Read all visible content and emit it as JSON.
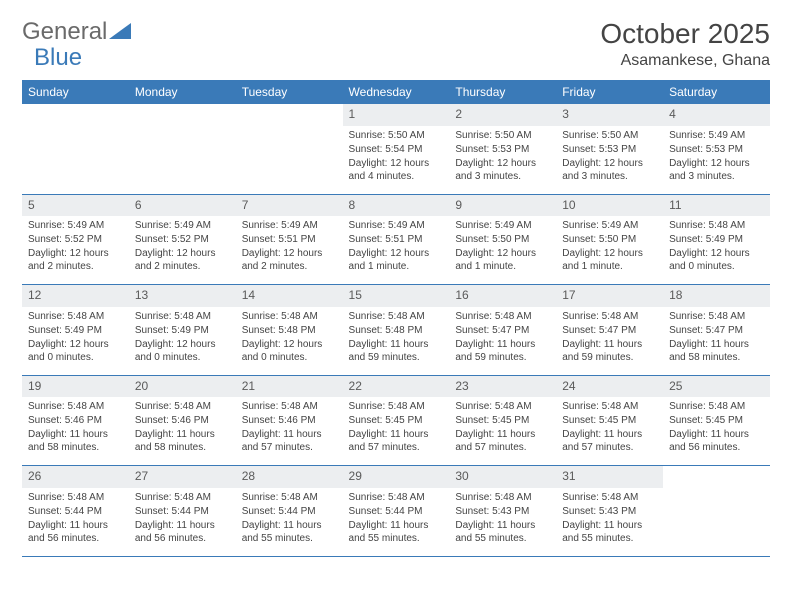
{
  "brand": {
    "part1": "General",
    "part2": "Blue"
  },
  "month_title": "October 2025",
  "location": "Asamankese, Ghana",
  "colors": {
    "header_bg": "#3a7ab8",
    "header_text": "#ffffff",
    "daynum_bg": "#eceef0",
    "daynum_text": "#5a5a5a",
    "row_border": "#3a7ab8",
    "body_text": "#444444",
    "page_bg": "#ffffff"
  },
  "typography": {
    "month_fontsize": 28,
    "location_fontsize": 16,
    "weekday_fontsize": 12,
    "daynum_fontsize": 12,
    "detail_fontsize": 10
  },
  "days_of_week": [
    "Sunday",
    "Monday",
    "Tuesday",
    "Wednesday",
    "Thursday",
    "Friday",
    "Saturday"
  ],
  "weeks": [
    [
      null,
      null,
      null,
      {
        "d": "1",
        "sr": "5:50 AM",
        "ss": "5:54 PM",
        "dl": "12 hours and 4 minutes."
      },
      {
        "d": "2",
        "sr": "5:50 AM",
        "ss": "5:53 PM",
        "dl": "12 hours and 3 minutes."
      },
      {
        "d": "3",
        "sr": "5:50 AM",
        "ss": "5:53 PM",
        "dl": "12 hours and 3 minutes."
      },
      {
        "d": "4",
        "sr": "5:49 AM",
        "ss": "5:53 PM",
        "dl": "12 hours and 3 minutes."
      }
    ],
    [
      {
        "d": "5",
        "sr": "5:49 AM",
        "ss": "5:52 PM",
        "dl": "12 hours and 2 minutes."
      },
      {
        "d": "6",
        "sr": "5:49 AM",
        "ss": "5:52 PM",
        "dl": "12 hours and 2 minutes."
      },
      {
        "d": "7",
        "sr": "5:49 AM",
        "ss": "5:51 PM",
        "dl": "12 hours and 2 minutes."
      },
      {
        "d": "8",
        "sr": "5:49 AM",
        "ss": "5:51 PM",
        "dl": "12 hours and 1 minute."
      },
      {
        "d": "9",
        "sr": "5:49 AM",
        "ss": "5:50 PM",
        "dl": "12 hours and 1 minute."
      },
      {
        "d": "10",
        "sr": "5:49 AM",
        "ss": "5:50 PM",
        "dl": "12 hours and 1 minute."
      },
      {
        "d": "11",
        "sr": "5:48 AM",
        "ss": "5:49 PM",
        "dl": "12 hours and 0 minutes."
      }
    ],
    [
      {
        "d": "12",
        "sr": "5:48 AM",
        "ss": "5:49 PM",
        "dl": "12 hours and 0 minutes."
      },
      {
        "d": "13",
        "sr": "5:48 AM",
        "ss": "5:49 PM",
        "dl": "12 hours and 0 minutes."
      },
      {
        "d": "14",
        "sr": "5:48 AM",
        "ss": "5:48 PM",
        "dl": "12 hours and 0 minutes."
      },
      {
        "d": "15",
        "sr": "5:48 AM",
        "ss": "5:48 PM",
        "dl": "11 hours and 59 minutes."
      },
      {
        "d": "16",
        "sr": "5:48 AM",
        "ss": "5:47 PM",
        "dl": "11 hours and 59 minutes."
      },
      {
        "d": "17",
        "sr": "5:48 AM",
        "ss": "5:47 PM",
        "dl": "11 hours and 59 minutes."
      },
      {
        "d": "18",
        "sr": "5:48 AM",
        "ss": "5:47 PM",
        "dl": "11 hours and 58 minutes."
      }
    ],
    [
      {
        "d": "19",
        "sr": "5:48 AM",
        "ss": "5:46 PM",
        "dl": "11 hours and 58 minutes."
      },
      {
        "d": "20",
        "sr": "5:48 AM",
        "ss": "5:46 PM",
        "dl": "11 hours and 58 minutes."
      },
      {
        "d": "21",
        "sr": "5:48 AM",
        "ss": "5:46 PM",
        "dl": "11 hours and 57 minutes."
      },
      {
        "d": "22",
        "sr": "5:48 AM",
        "ss": "5:45 PM",
        "dl": "11 hours and 57 minutes."
      },
      {
        "d": "23",
        "sr": "5:48 AM",
        "ss": "5:45 PM",
        "dl": "11 hours and 57 minutes."
      },
      {
        "d": "24",
        "sr": "5:48 AM",
        "ss": "5:45 PM",
        "dl": "11 hours and 57 minutes."
      },
      {
        "d": "25",
        "sr": "5:48 AM",
        "ss": "5:45 PM",
        "dl": "11 hours and 56 minutes."
      }
    ],
    [
      {
        "d": "26",
        "sr": "5:48 AM",
        "ss": "5:44 PM",
        "dl": "11 hours and 56 minutes."
      },
      {
        "d": "27",
        "sr": "5:48 AM",
        "ss": "5:44 PM",
        "dl": "11 hours and 56 minutes."
      },
      {
        "d": "28",
        "sr": "5:48 AM",
        "ss": "5:44 PM",
        "dl": "11 hours and 55 minutes."
      },
      {
        "d": "29",
        "sr": "5:48 AM",
        "ss": "5:44 PM",
        "dl": "11 hours and 55 minutes."
      },
      {
        "d": "30",
        "sr": "5:48 AM",
        "ss": "5:43 PM",
        "dl": "11 hours and 55 minutes."
      },
      {
        "d": "31",
        "sr": "5:48 AM",
        "ss": "5:43 PM",
        "dl": "11 hours and 55 minutes."
      },
      null
    ]
  ]
}
